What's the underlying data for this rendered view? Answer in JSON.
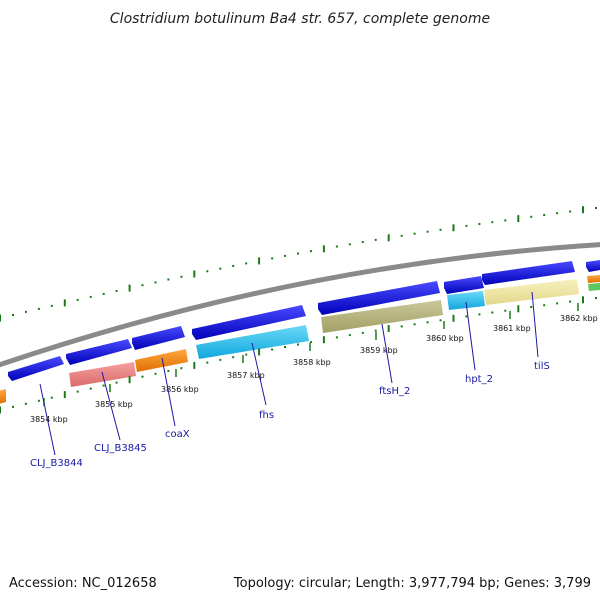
{
  "title": "Clostridium botulinum Ba4 str. 657, complete genome",
  "accession": "Accession: NC_012658",
  "summary": "Topology: circular; Length: 3,977,794 bp; Genes: 3,799",
  "ticks": [
    "3854 kbp",
    "3855 kbp",
    "3856 kbp",
    "3857 kbp",
    "3858 kbp",
    "3859 kbp",
    "3860 kbp",
    "3861 kbp",
    "3862 kbp"
  ],
  "genes": [
    "CLJ_B3844",
    "CLJ_B3845",
    "coaX",
    "fhs",
    "ftsH_2",
    "hpt_2",
    "tilS"
  ],
  "colors": {
    "backbone": "#888888",
    "forward_cds": "#1a1adb",
    "orange": "#ff8c00",
    "pink": "#f08080",
    "cyan": "#29c5f0",
    "olive": "#b5b37a",
    "pale_yellow": "#f0e6a0",
    "green_tick": "#1a7a1a"
  }
}
